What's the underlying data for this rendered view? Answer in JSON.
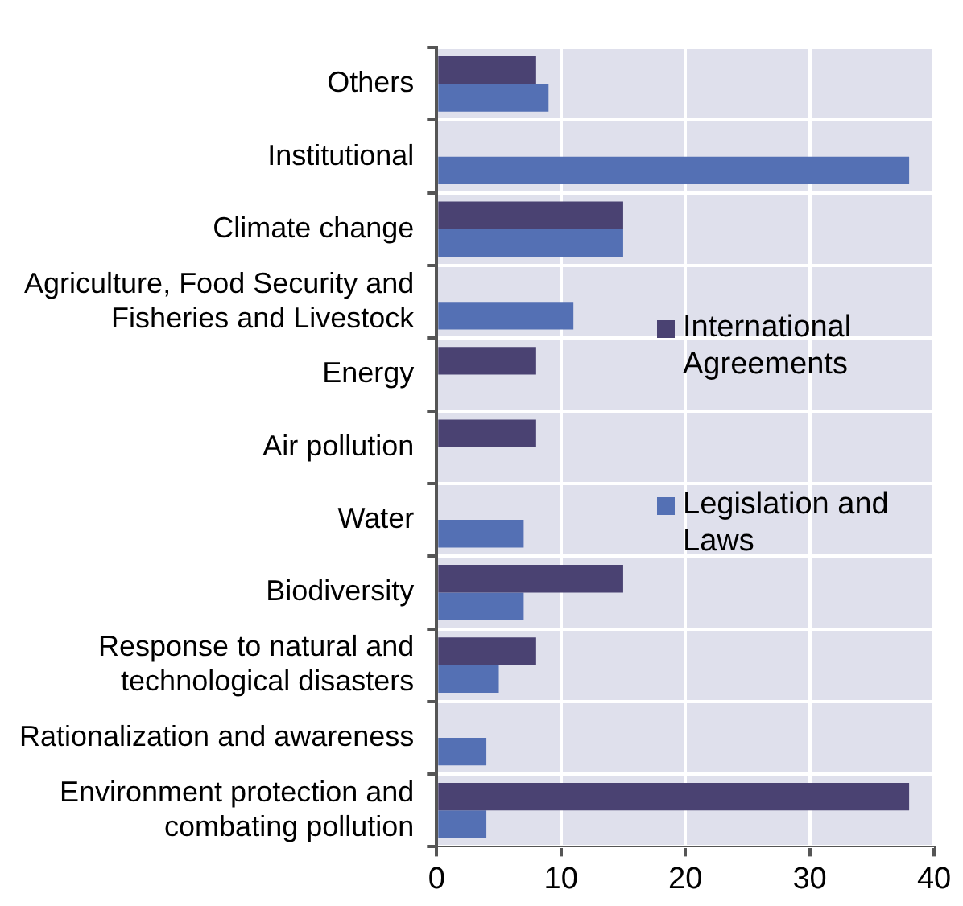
{
  "chart_data": {
    "type": "bar",
    "orientation": "horizontal",
    "categories": [
      "Others",
      "Institutional",
      "Climate change",
      "Agriculture, Food Security and Fisheries and Livestock",
      "Energy",
      "Air pollution",
      "Water",
      "Biodiversity",
      "Response to natural and technological disasters",
      "Rationalization and awareness",
      "Environment protection and combating pollution"
    ],
    "series": [
      {
        "name": "International Agreements",
        "color": "#4a4272",
        "values": [
          8,
          null,
          15,
          null,
          8,
          8,
          null,
          15,
          8,
          null,
          38
        ]
      },
      {
        "name": "Legislation and Laws",
        "color": "#5470b4",
        "values": [
          9,
          38,
          15,
          11,
          null,
          null,
          7,
          7,
          5,
          4,
          4
        ]
      }
    ],
    "xlim": [
      0,
      40
    ],
    "xticks": [
      0,
      10,
      20,
      30,
      40
    ],
    "grid": true,
    "legend": "right"
  }
}
